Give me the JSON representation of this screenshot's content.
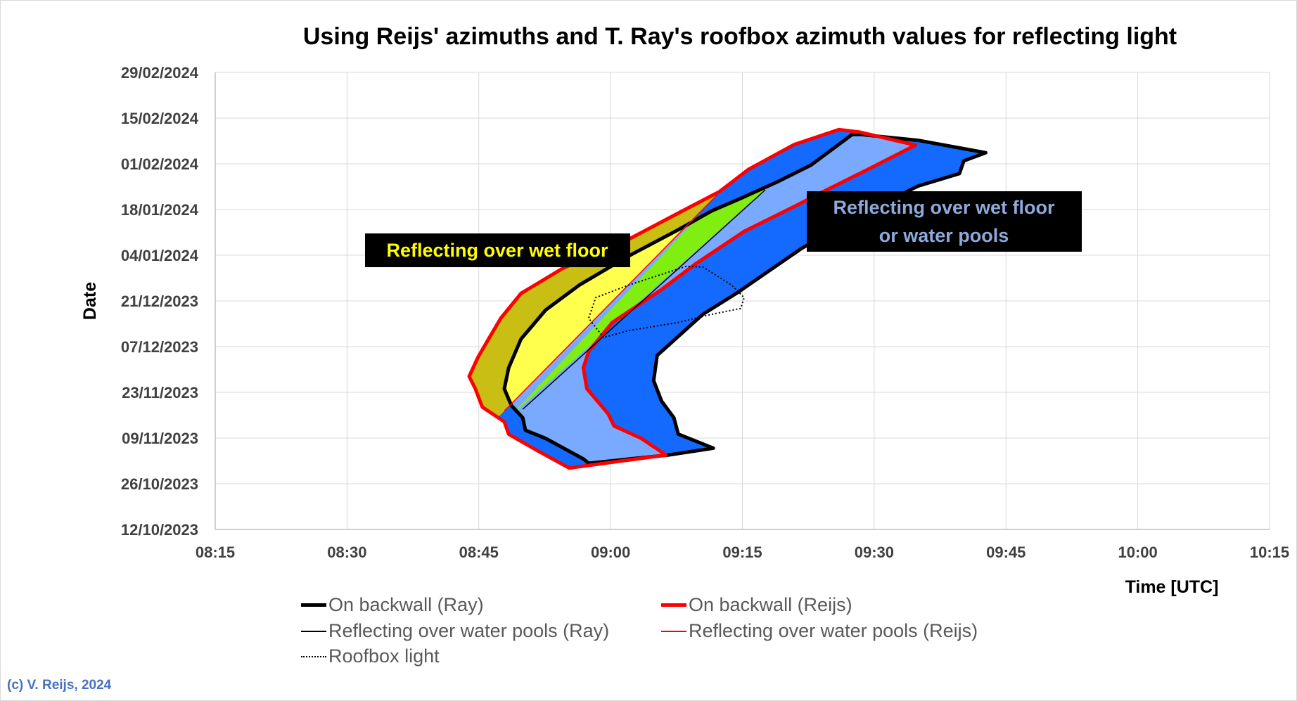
{
  "chart_data": {
    "type": "area",
    "title": "Using Reijs' azimuths and T. Ray's roofbox azimuth values for reflecting light",
    "xlabel": "Time [UTC]",
    "ylabel": "Date",
    "x_unit": "minutes after 00:00 UTC",
    "y_unit": "days since 12/10/2023",
    "xlim": [
      495,
      615
    ],
    "ylim": [
      0,
      140
    ],
    "x_ticks": [
      495,
      510,
      525,
      540,
      555,
      570,
      585,
      600,
      615
    ],
    "x_tick_labels": [
      "08:15",
      "08:30",
      "08:45",
      "09:00",
      "09:15",
      "09:30",
      "09:45",
      "10:00",
      "10:15"
    ],
    "y_ticks": [
      0,
      14,
      28,
      42,
      56,
      70,
      84,
      98,
      112,
      126,
      140
    ],
    "y_tick_labels": [
      "12/10/2023",
      "26/10/2023",
      "09/11/2023",
      "23/11/2023",
      "07/12/2023",
      "21/12/2023",
      "04/01/2024",
      "18/01/2024",
      "01/02/2024",
      "15/02/2024",
      "29/02/2024"
    ],
    "grid": true,
    "legend_position": "bottom",
    "series": [
      {
        "name": "On backwall (Ray)",
        "style": "thick-black-outline",
        "color": "#000000",
        "polygon": [
          [
            567.5,
            121.0
          ],
          [
            562.8,
            111.6
          ],
          [
            559.0,
            106.5
          ],
          [
            554.8,
            101.4
          ],
          [
            551.5,
            97.6
          ],
          [
            547.7,
            91.8
          ],
          [
            542.0,
            83.7
          ],
          [
            536.4,
            74.8
          ],
          [
            532.6,
            67.2
          ],
          [
            529.8,
            58.3
          ],
          [
            528.4,
            49.5
          ],
          [
            527.9,
            43.1
          ],
          [
            528.7,
            38.0
          ],
          [
            530.0,
            34.2
          ],
          [
            530.3,
            30.4
          ],
          [
            532.6,
            27.9
          ],
          [
            536.9,
            21.6
          ],
          [
            537.5,
            20.3
          ],
          [
            546.6,
            22.8
          ],
          [
            551.7,
            24.9
          ],
          [
            547.7,
            29.2
          ],
          [
            547.2,
            34.2
          ],
          [
            545.8,
            39.3
          ],
          [
            544.9,
            45.6
          ],
          [
            545.3,
            53.3
          ],
          [
            550.5,
            65.9
          ],
          [
            554.3,
            72.3
          ],
          [
            561.8,
            86.2
          ],
          [
            569.3,
            97.6
          ],
          [
            575.0,
            105.2
          ],
          [
            579.7,
            109.0
          ],
          [
            580.2,
            112.9
          ],
          [
            582.7,
            115.4
          ],
          [
            575.0,
            119.2
          ],
          [
            568.4,
            121.0
          ]
        ]
      },
      {
        "name": "On backwall (Reijs)",
        "style": "thick-red-outline",
        "color": "#FF0000",
        "polygon": [
          [
            566.0,
            122.5
          ],
          [
            560.9,
            117.9
          ],
          [
            555.7,
            110.3
          ],
          [
            552.4,
            103.5
          ],
          [
            547.7,
            96.9
          ],
          [
            542.0,
            88.8
          ],
          [
            534.5,
            79.9
          ],
          [
            529.8,
            72.3
          ],
          [
            527.5,
            64.7
          ],
          [
            526.1,
            58.3
          ],
          [
            524.9,
            52.7
          ],
          [
            523.9,
            46.9
          ],
          [
            524.6,
            43.1
          ],
          [
            525.4,
            37.5
          ],
          [
            527.9,
            33.0
          ],
          [
            528.4,
            29.2
          ],
          [
            531.7,
            24.1
          ],
          [
            535.3,
            18.8
          ],
          [
            546.3,
            22.8
          ],
          [
            543.5,
            27.9
          ],
          [
            540.4,
            31.7
          ],
          [
            539.7,
            35.5
          ],
          [
            537.3,
            43.1
          ],
          [
            536.9,
            49.5
          ],
          [
            537.5,
            54.5
          ],
          [
            540.2,
            63.4
          ],
          [
            545.8,
            73.5
          ],
          [
            549.6,
            81.2
          ],
          [
            555.2,
            91.3
          ],
          [
            560.9,
            98.9
          ],
          [
            564.6,
            104.0
          ],
          [
            569.3,
            110.3
          ],
          [
            574.7,
            117.7
          ],
          [
            568.4,
            121.7
          ]
        ]
      },
      {
        "name": "Reflecting over water pools (Ray)",
        "style": "thin-black-line",
        "color": "#000000",
        "line": [
          [
            530.0,
            36.8
          ],
          [
            557.6,
            104.0
          ]
        ]
      },
      {
        "name": "Reflecting over water pools (Reijs)",
        "style": "thin-red-line",
        "color": "#FF0000",
        "line": [
          [
            527.9,
            36.3
          ],
          [
            552.2,
            102.7
          ]
        ]
      },
      {
        "name": "Roofbox light",
        "style": "dotted-black",
        "color": "#000000",
        "polygon": [
          [
            539.2,
            58.8
          ],
          [
            537.5,
            64.7
          ],
          [
            538.3,
            71.0
          ],
          [
            542.0,
            74.8
          ],
          [
            548.6,
            80.6
          ],
          [
            550.5,
            80.4
          ],
          [
            553.8,
            74.8
          ],
          [
            555.2,
            71.0
          ],
          [
            554.8,
            67.7
          ],
          [
            551.5,
            65.9
          ],
          [
            547.7,
            63.4
          ],
          [
            542.0,
            60.9
          ]
        ]
      }
    ],
    "fill_colors": {
      "blue": "#1469FF",
      "light_blue": "#7AAAFF",
      "olive": "#C8BE14",
      "yellow": "#FFFF4D",
      "green": "#80EE10"
    },
    "annotations": [
      {
        "text": "Reflecting over wet floor",
        "color": "#FFFF00",
        "background": "#000000"
      },
      {
        "text_lines": [
          "Reflecting over wet floor",
          "or water pools"
        ],
        "color": "#8EA9DB",
        "background": "#000000"
      }
    ]
  },
  "legend": {
    "items": [
      "On backwall (Ray)",
      "On backwall (Reijs)",
      "Reflecting over water pools (Ray)",
      "Reflecting over water pools (Reijs)",
      "Roofbox light"
    ]
  },
  "footer": {
    "copyright": "(c) V. Reijs, 2024"
  }
}
